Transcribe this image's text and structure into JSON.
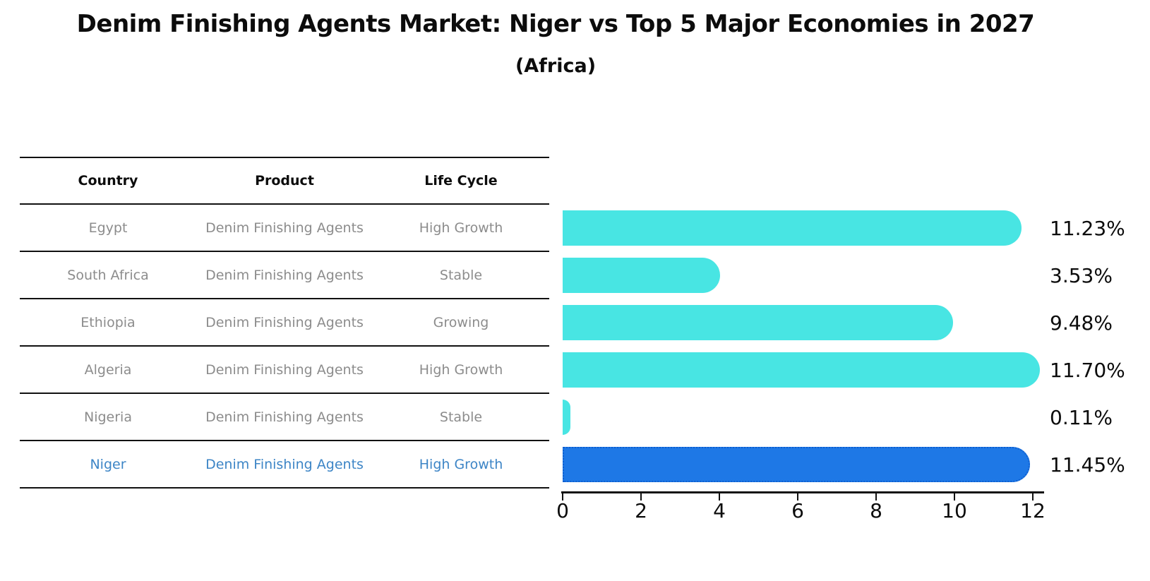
{
  "title": "Denim Finishing Agents Market: Niger vs Top 5 Major Economies in 2027",
  "subtitle": "(Africa)",
  "table": {
    "headers": {
      "country": "Country",
      "product": "Product",
      "life_cycle": "Life Cycle"
    },
    "rows": [
      {
        "country": "Egypt",
        "product": "Denim Finishing Agents",
        "life_cycle": "High Growth",
        "highlight": false
      },
      {
        "country": "South Africa",
        "product": "Denim Finishing Agents",
        "life_cycle": "Stable",
        "highlight": false
      },
      {
        "country": "Ethiopia",
        "product": "Denim Finishing Agents",
        "life_cycle": "Growing",
        "highlight": false
      },
      {
        "country": "Algeria",
        "product": "Denim Finishing Agents",
        "life_cycle": "High Growth",
        "highlight": false
      },
      {
        "country": "Nigeria",
        "product": "Denim Finishing Agents",
        "life_cycle": "Stable",
        "highlight": false
      },
      {
        "country": "Niger",
        "product": "Denim Finishing Agents",
        "life_cycle": "High Growth",
        "highlight": true
      }
    ]
  },
  "chart_data": {
    "type": "bar",
    "orientation": "horizontal",
    "categories": [
      "Egypt",
      "South Africa",
      "Ethiopia",
      "Algeria",
      "Nigeria",
      "Niger"
    ],
    "values": [
      11.23,
      3.53,
      9.48,
      11.7,
      0.11,
      11.45
    ],
    "value_labels": [
      "11.23%",
      "3.53%",
      "9.48%",
      "11.70%",
      "0.11%",
      "11.45%"
    ],
    "xlim": [
      0,
      12
    ],
    "x_ticks": [
      0,
      2,
      4,
      6,
      8,
      10,
      12
    ],
    "grid": false,
    "legend": "none",
    "bar_color": "#48e5e3",
    "highlight_index": 5,
    "highlight_bar_color": "#1e78e6",
    "highlight_text_color": "#3d85c6"
  }
}
